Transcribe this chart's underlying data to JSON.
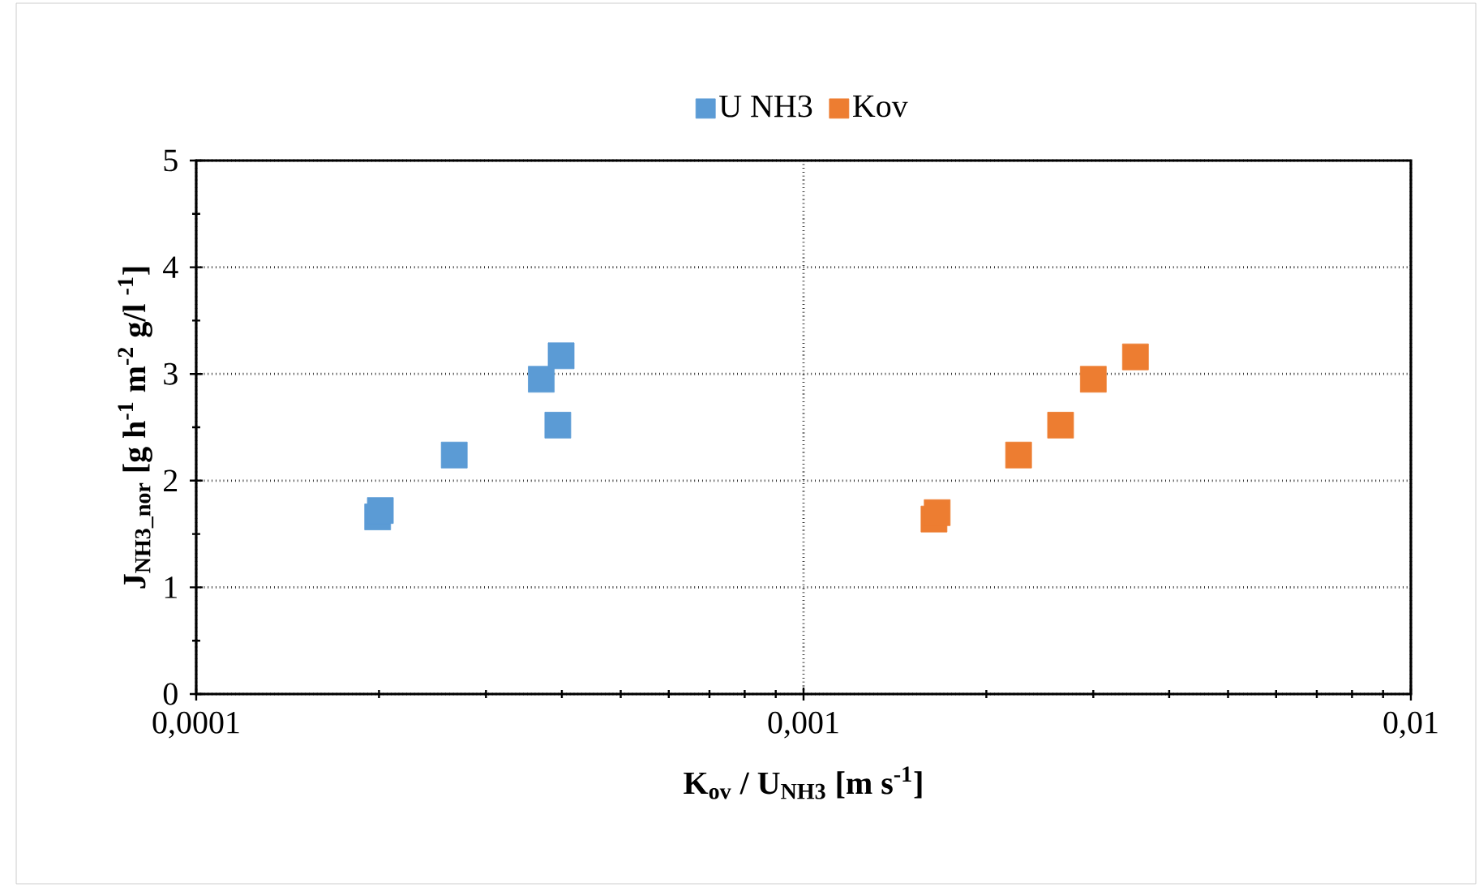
{
  "chart_data": {
    "type": "scatter",
    "xlabel": "**K$_{ov}$ / U$_{NH3}$ [m s$^{-1}$]**",
    "ylabel": "**J$_{NH3_nor}$ [g h$^{-1}$ m$^{-2}$ g/l $^{-1}$]**",
    "series": [
      {
        "name": "U NH3",
        "color": "#5b9bd5",
        "x": [
          0.000199,
          0.000201,
          0.000266,
          0.00037,
          0.000394,
          0.000399
        ],
        "values": [
          1.66,
          1.72,
          2.24,
          2.95,
          2.52,
          3.17
        ]
      },
      {
        "name": "Kov",
        "color": "#ed7d31",
        "x": [
          0.00164,
          0.00166,
          0.00226,
          0.00265,
          0.003,
          0.00352
        ],
        "values": [
          1.64,
          1.7,
          2.24,
          2.52,
          2.95,
          3.16
        ]
      }
    ],
    "log": "x",
    "xlim": [
      0.0001,
      0.01
    ],
    "xticks": [
      {
        "value": 0.0001,
        "label": "0,0001"
      },
      {
        "value": 0.001,
        "label": "0,001"
      },
      {
        "value": 0.01,
        "label": "0,01"
      }
    ],
    "ylim": [
      0,
      5
    ],
    "yticks": [
      0,
      1,
      2,
      3,
      4,
      5
    ],
    "grid": true,
    "legend": "top",
    "marker": "square"
  }
}
